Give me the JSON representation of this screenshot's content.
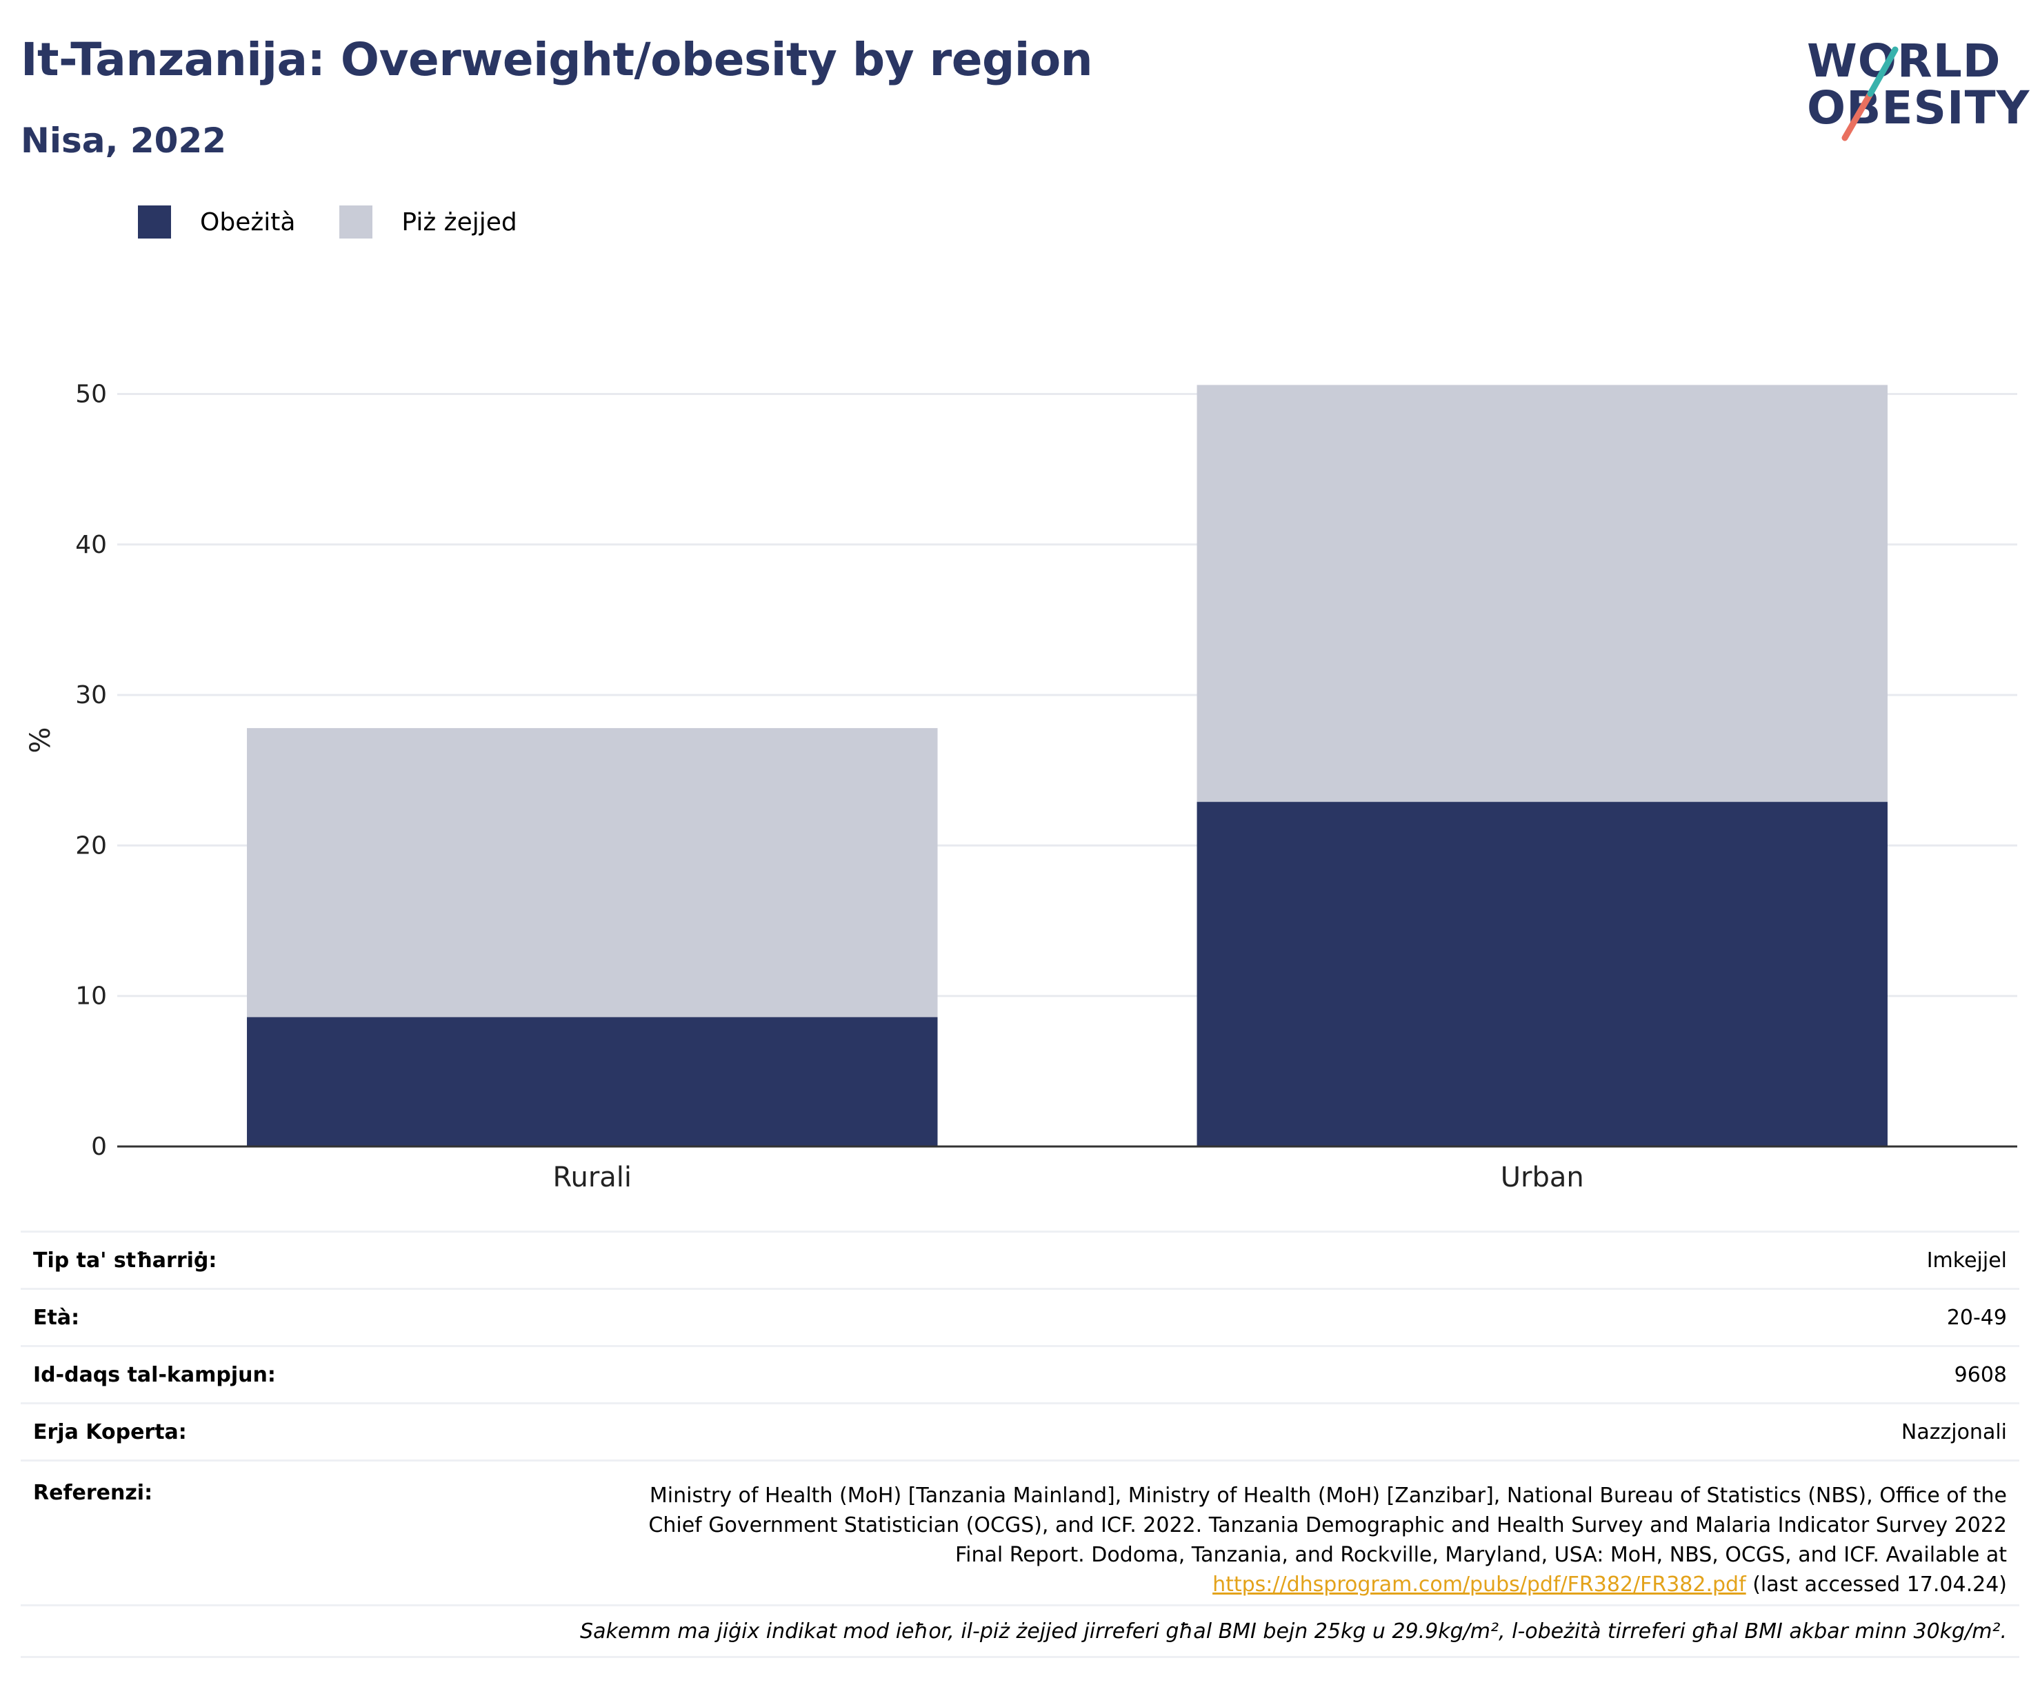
{
  "header": {
    "title": "It-Tanzanija: Overweight/obesity by region",
    "subtitle": "Nisa, 2022"
  },
  "logo": {
    "line1": "WORLD",
    "line2": "OBESITY"
  },
  "colors": {
    "obesity": "#2a3663",
    "overweight": "#c9ccd7",
    "axis": "#333333",
    "grid": "#e8eaef",
    "link": "#e3a21a",
    "accent_teal": "#38b2ac",
    "accent_red": "#e9705f"
  },
  "legend": [
    {
      "label": "Obeżità",
      "color": "#2a3663"
    },
    {
      "label": "Piż żejjed",
      "color": "#c9ccd7"
    }
  ],
  "chart_data": {
    "type": "bar",
    "stacked": true,
    "categories": [
      "Rurali",
      "Urban"
    ],
    "series": [
      {
        "name": "Obeżità",
        "values": [
          8.6,
          22.9
        ]
      },
      {
        "name": "Piż żejjed",
        "values": [
          19.2,
          27.7
        ]
      }
    ],
    "ylabel": "%",
    "xlabel": "",
    "ylim": [
      0,
      55
    ],
    "yticks": [
      0,
      10,
      20,
      30,
      40,
      50
    ],
    "grid": true,
    "legend_position": "top-left"
  },
  "meta": {
    "survey_type": {
      "label": "Tip ta' stħarriġ:",
      "value": "Imkejjel"
    },
    "age": {
      "label": "Età:",
      "value": "20-49"
    },
    "sample_size": {
      "label": "Id-daqs tal-kampjun:",
      "value": "9608"
    },
    "area": {
      "label": "Erja Koperta:",
      "value": "Nazzjonali"
    },
    "reference": {
      "label": "Referenzi:",
      "text": "Ministry of Health (MoH) [Tanzania Mainland], Ministry of Health (MoH) [Zanzibar], National Bureau of Statistics (NBS), Office of the Chief Government Statistician (OCGS), and ICF. 2022. Tanzania Demographic and Health Survey and Malaria Indicator Survey 2022 Final Report. Dodoma, Tanzania, and Rockville, Maryland, USA: MoH, NBS, OCGS, and ICF. Available at",
      "link": "https://dhsprogram.com/pubs/pdf/FR382/FR382.pdf",
      "suffix": "(last accessed 17.04.24)"
    },
    "note": "Sakemm ma jiġix indikat mod ieħor, il-piż żejjed jirreferi għal BMI bejn 25kg u 29.9kg/m², l-obeżità tirreferi għal BMI akbar minn 30kg/m²."
  }
}
